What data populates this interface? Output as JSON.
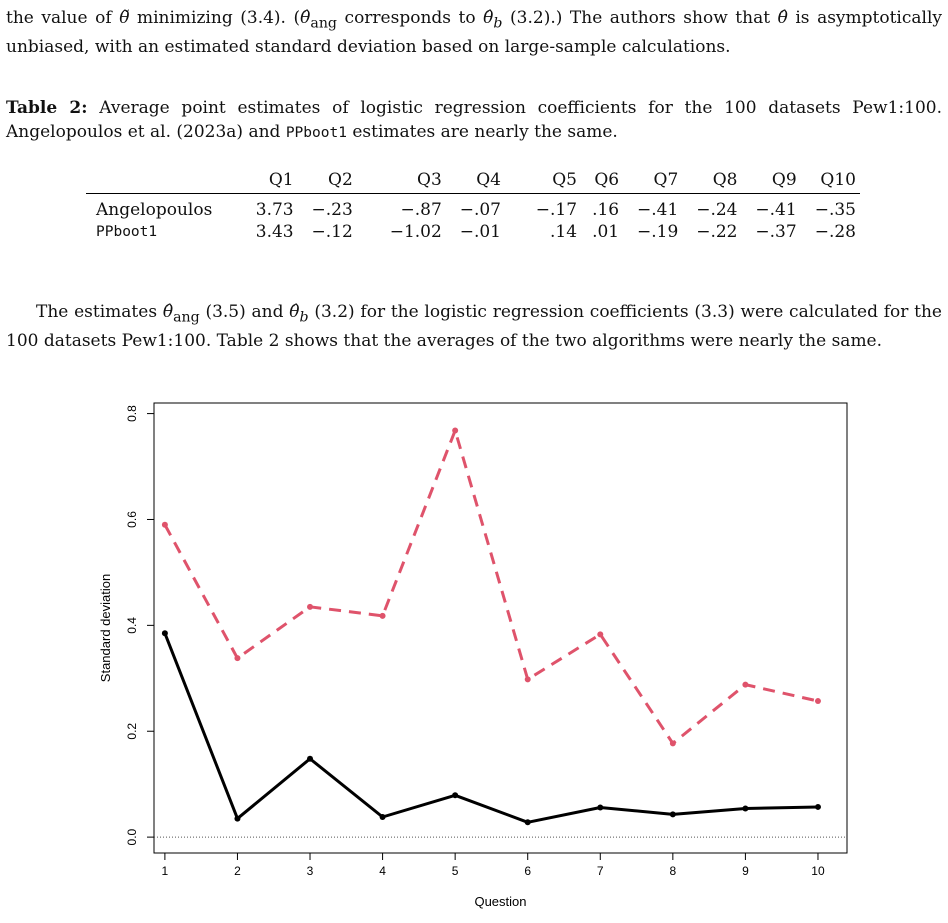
{
  "paragraph1": {
    "text_a": "the value of ",
    "theta_tilde": "θ̃",
    "text_b": " minimizing (3.4).  (",
    "theta_ang": "θ̂",
    "sub_ang": "ang",
    "text_c": " corresponds to ",
    "theta_b": "θ̂",
    "sub_b": "b",
    "text_d": " (3.2).)  The authors show that ",
    "theta_hat": "θ̂",
    "text_e": " is asymptotically unbiased, with an estimated standard deviation based on large-sample calculations."
  },
  "caption": {
    "label": "Table 2:",
    "text_a": " Average point estimates of logistic regression coefficients for the 100 datasets Pew1:100.  Angelopoulos et al. (2023a) and ",
    "code": "PPboot1",
    "text_b": " estimates are nearly the same."
  },
  "table": {
    "columns": [
      "Q1",
      "Q2",
      "Q3",
      "Q4",
      "Q5",
      "Q6",
      "Q7",
      "Q8",
      "Q9",
      "Q10"
    ],
    "rows": [
      {
        "name": "Angelopoulos",
        "values": [
          "3.73",
          "−.23",
          "−.87",
          "−.07",
          "−.17",
          ".16",
          "−.41",
          "−.24",
          "−.41",
          "−.35"
        ]
      },
      {
        "name": "PPboot1",
        "values": [
          "3.43",
          "−.12",
          "−1.02",
          "−.01",
          ".14",
          ".01",
          "−.19",
          "−.22",
          "−.37",
          "−.28"
        ]
      }
    ]
  },
  "paragraph2": {
    "text_a": "The estimates ",
    "theta_ang": "θ̂",
    "sub_ang": "ang",
    "text_b": " (3.5) and ",
    "theta_b": "θ̂",
    "sub_b": "b",
    "text_c": " (3.2) for the logistic regression coefficients (3.3) were calculated for the 100 datasets Pew1:100. Table 2 shows that the averages of the two algorithms were nearly the same."
  },
  "chart_data": {
    "type": "line",
    "title": "",
    "xlabel": "Question",
    "ylabel": "Standard deviation",
    "x": [
      1,
      2,
      3,
      4,
      5,
      6,
      7,
      8,
      9,
      10
    ],
    "xlim": [
      0.85,
      10.4
    ],
    "ylim": [
      -0.03,
      0.82
    ],
    "xticks": [
      "1",
      "2",
      "3",
      "4",
      "5",
      "6",
      "7",
      "8",
      "9",
      "10"
    ],
    "yticks": [
      {
        "value": 0.0,
        "label": "0.0"
      },
      {
        "value": 0.2,
        "label": "0.2"
      },
      {
        "value": 0.4,
        "label": "0.4"
      },
      {
        "value": 0.6,
        "label": "0.6"
      },
      {
        "value": 0.8,
        "label": "0.8"
      }
    ],
    "reference_line": {
      "value": 0.0,
      "style": "dotted"
    },
    "grid": false,
    "legend": "none",
    "series": [
      {
        "values": [
          0.385,
          0.035,
          0.148,
          0.038,
          0.079,
          0.028,
          0.056,
          0.043,
          0.054,
          0.057
        ],
        "color": "#000000",
        "style": "solid"
      },
      {
        "values": [
          0.59,
          0.338,
          0.435,
          0.418,
          0.768,
          0.298,
          0.383,
          0.177,
          0.288,
          0.257
        ],
        "color": "#DF536B",
        "style": "dashed"
      }
    ]
  }
}
